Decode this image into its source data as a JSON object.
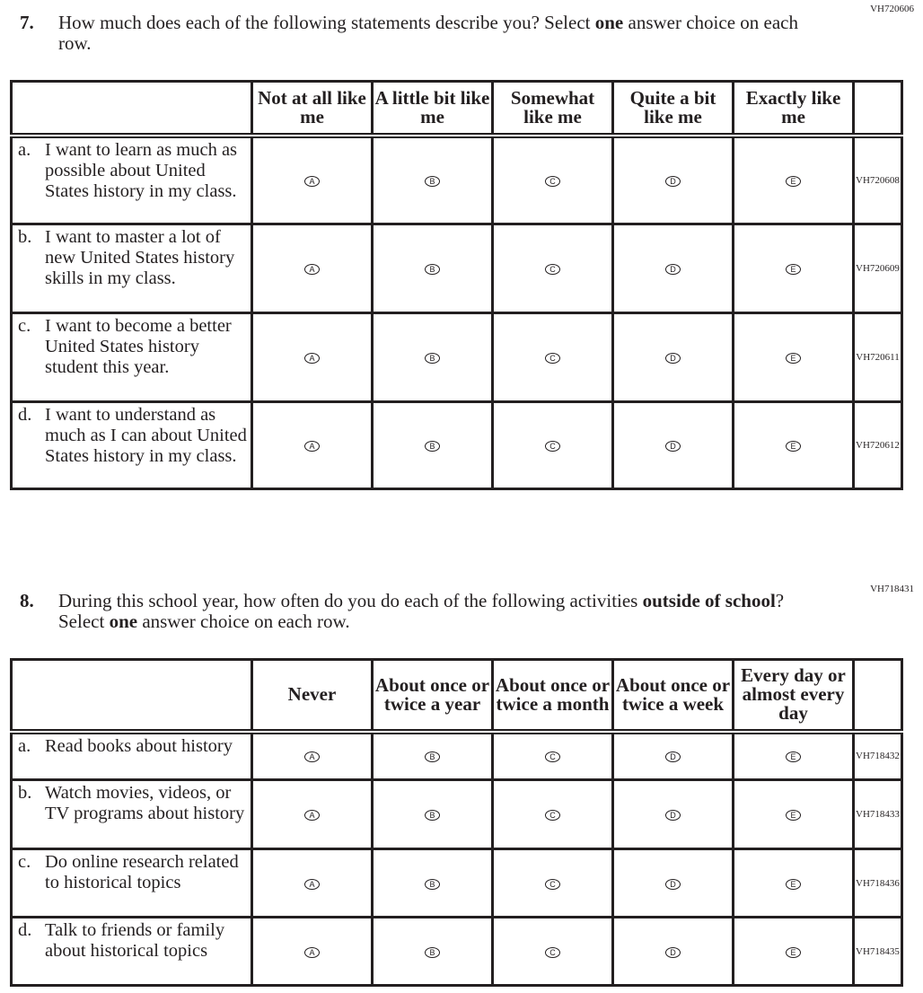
{
  "q7": {
    "code": "VH720606",
    "number": "7.",
    "stem_a": "How much does each of the following statements describe you? Select ",
    "stem_bold": "one",
    "stem_b": " answer choice on each row.",
    "headers": [
      "Not at all like me",
      "A little bit like me",
      "Somewhat like me",
      "Quite a bit like me",
      "Exactly like me"
    ],
    "rows": [
      {
        "letter": "a.",
        "text": "I want to learn as much as possible about United States history in my class.",
        "id": "VH720608"
      },
      {
        "letter": "b.",
        "text": "I want to master a lot of new United States history skills in my class.",
        "id": "VH720609"
      },
      {
        "letter": "c.",
        "text": "I want to become a better United States history student this year.",
        "id": "VH720611"
      },
      {
        "letter": "d.",
        "text": "I want to understand as much as I can about United States history in my class.",
        "id": "VH720612"
      }
    ]
  },
  "q8": {
    "code": "VH718431",
    "number": "8.",
    "stem_a": "During this school year, how often do you do each of the following activities ",
    "stem_bold": "outside of school",
    "stem_b": "? Select ",
    "stem_bold2": "one",
    "stem_c": " answer choice on each row.",
    "headers": [
      "Never",
      "About once or twice a year",
      "About once or twice a month",
      "About once or twice a week",
      "Every day or almost every day"
    ],
    "rows": [
      {
        "letter": "a.",
        "text": "Read books about history",
        "id": "VH718432"
      },
      {
        "letter": "b.",
        "text": "Watch movies, videos, or TV programs about history",
        "id": "VH718433"
      },
      {
        "letter": "c.",
        "text": "Do online research related to historical topics",
        "id": "VH718436"
      },
      {
        "letter": "d.",
        "text": "Talk to friends or family about historical topics",
        "id": "VH718435"
      }
    ]
  },
  "options": [
    "A",
    "B",
    "C",
    "D",
    "E"
  ]
}
